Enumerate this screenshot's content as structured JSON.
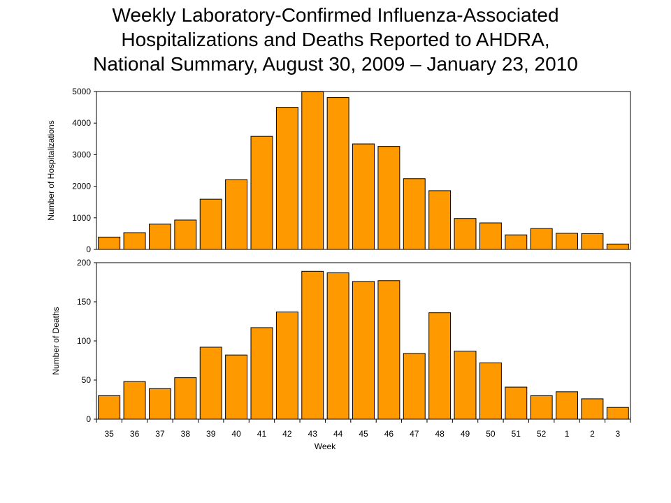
{
  "title": {
    "line1": "Weekly Laboratory-Confirmed Influenza-Associated",
    "line2": "Hospitalizations and Deaths Reported to AHDRA,",
    "line3": "National Summary, August 30, 2009 – January 23, 2010"
  },
  "colors": {
    "bar": "#FF9900",
    "bar_stroke": "#000000"
  },
  "chart_data": [
    {
      "type": "bar",
      "title": "",
      "xlabel": "",
      "ylabel": "Number of Hospitalizations",
      "ylim": [
        0,
        5000
      ],
      "yticks": [
        "0",
        "1000",
        "2000",
        "3000",
        "4000",
        "5000"
      ],
      "grid": false,
      "categories": [
        "35",
        "36",
        "37",
        "38",
        "39",
        "40",
        "41",
        "42",
        "43",
        "44",
        "45",
        "46",
        "47",
        "48",
        "49",
        "50",
        "51",
        "52",
        "1",
        "2",
        "3"
      ],
      "values": [
        390,
        530,
        800,
        930,
        1590,
        2210,
        3580,
        4500,
        4990,
        4810,
        3340,
        3260,
        2240,
        1860,
        980,
        840,
        460,
        660,
        510,
        500,
        170
      ]
    },
    {
      "type": "bar",
      "title": "",
      "xlabel": "Week",
      "ylabel": "Number of Deaths",
      "ylim": [
        0,
        200
      ],
      "yticks": [
        "0",
        "50",
        "100",
        "150",
        "200"
      ],
      "grid": false,
      "categories": [
        "35",
        "36",
        "37",
        "38",
        "39",
        "40",
        "41",
        "42",
        "43",
        "44",
        "45",
        "46",
        "47",
        "48",
        "49",
        "50",
        "51",
        "52",
        "1",
        "2",
        "3"
      ],
      "values": [
        30,
        48,
        39,
        53,
        92,
        82,
        117,
        137,
        189,
        187,
        176,
        177,
        84,
        136,
        87,
        72,
        41,
        30,
        35,
        26,
        15
      ]
    }
  ]
}
